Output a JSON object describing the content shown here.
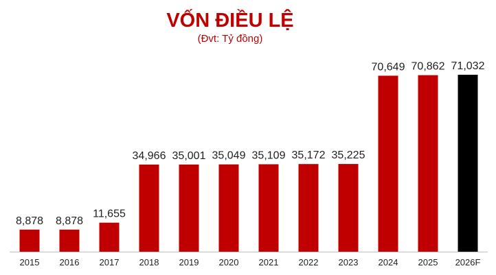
{
  "chart_data": {
    "type": "bar",
    "title": "VỐN ĐIỀU LỆ",
    "subtitle": "(Đvt: Tỷ đồng)",
    "categories": [
      "2015",
      "2016",
      "2017",
      "2018",
      "2019",
      "2020",
      "2021",
      "2022",
      "2023",
      "2024",
      "2025",
      "2026F"
    ],
    "values": [
      8878,
      8878,
      11655,
      34966,
      35001,
      35049,
      35109,
      35172,
      35225,
      70649,
      70862,
      71032
    ],
    "value_labels": [
      "8,878",
      "8,878",
      "11,655",
      "34,966",
      "35,001",
      "35,049",
      "35,109",
      "35,172",
      "35,225",
      "70,649",
      "70,862",
      "71,032"
    ],
    "ylim": [
      0,
      71032
    ],
    "grid": false,
    "legend": "none",
    "colors": {
      "actual": "#c00000",
      "forecast": "#000000",
      "title": "#c00000",
      "label": "#1f1f1f",
      "axis": "#bfbfbf"
    },
    "forecast_categories": [
      "2026F"
    ]
  }
}
